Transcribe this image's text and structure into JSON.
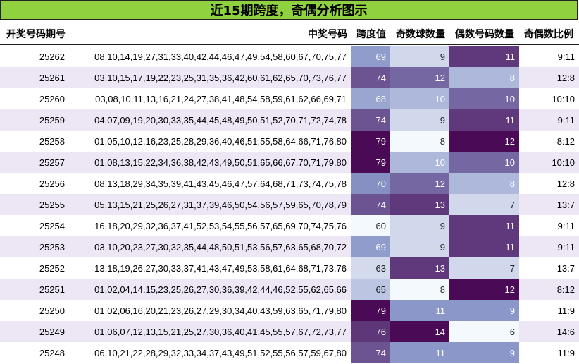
{
  "title": "近15期跨度，奇偶分析图示",
  "headers": {
    "period": "开奖号码期号",
    "numbers": "中奖号码",
    "span": "跨度值",
    "odd": "奇数球数量",
    "even": "偶数号码数量",
    "ratio": "奇偶数比例"
  },
  "chart_data": {
    "type": "table",
    "columns": [
      "开奖号码期号",
      "中奖号码",
      "跨度值",
      "奇数球数量",
      "偶数号码数量",
      "奇偶数比例"
    ],
    "rows": [
      {
        "period": "25262",
        "numbers": "08,10,14,19,27,31,33,40,42,44,46,47,49,54,58,60,67,70,75,77",
        "span": 69,
        "odd": 9,
        "even": 11,
        "ratio": "9:11"
      },
      {
        "period": "25261",
        "numbers": "03,10,15,17,19,22,23,25,31,35,36,42,60,61,62,65,70,73,76,77",
        "span": 74,
        "odd": 12,
        "even": 8,
        "ratio": "12:8"
      },
      {
        "period": "25260",
        "numbers": "03,08,10,11,13,16,21,24,27,38,41,48,54,58,59,61,62,66,69,71",
        "span": 68,
        "odd": 10,
        "even": 10,
        "ratio": "10:10"
      },
      {
        "period": "25259",
        "numbers": "04,07,09,19,20,30,33,35,44,45,48,49,50,51,52,70,71,72,74,78",
        "span": 74,
        "odd": 9,
        "even": 11,
        "ratio": "9:11"
      },
      {
        "period": "25258",
        "numbers": "01,05,10,12,16,23,25,28,29,36,40,46,51,55,58,64,66,71,76,80",
        "span": 79,
        "odd": 8,
        "even": 12,
        "ratio": "8:12"
      },
      {
        "period": "25257",
        "numbers": "01,08,13,15,22,34,36,38,42,43,49,50,51,65,66,67,70,71,79,80",
        "span": 79,
        "odd": 10,
        "even": 10,
        "ratio": "10:10"
      },
      {
        "period": "25256",
        "numbers": "08,13,18,29,34,35,39,41,43,45,46,47,57,64,68,71,73,74,75,78",
        "span": 70,
        "odd": 12,
        "even": 8,
        "ratio": "12:8"
      },
      {
        "period": "25255",
        "numbers": "05,13,15,21,25,26,27,31,37,39,46,50,54,56,57,59,65,70,78,79",
        "span": 74,
        "odd": 13,
        "even": 7,
        "ratio": "13:7"
      },
      {
        "period": "25254",
        "numbers": "16,18,20,29,32,36,37,41,52,53,54,55,56,57,65,69,70,74,75,76",
        "span": 60,
        "odd": 9,
        "even": 11,
        "ratio": "9:11"
      },
      {
        "period": "25253",
        "numbers": "03,10,20,23,27,30,32,35,44,48,50,51,53,56,57,63,65,68,70,72",
        "span": 69,
        "odd": 9,
        "even": 11,
        "ratio": "9:11"
      },
      {
        "period": "25252",
        "numbers": "13,18,19,26,27,30,33,37,41,43,47,49,53,58,61,64,68,71,73,76",
        "span": 63,
        "odd": 13,
        "even": 7,
        "ratio": "13:7"
      },
      {
        "period": "25251",
        "numbers": "01,02,04,14,15,23,25,26,27,30,36,39,42,44,46,52,55,62,65,66",
        "span": 65,
        "odd": 8,
        "even": 12,
        "ratio": "8:12"
      },
      {
        "period": "25250",
        "numbers": "01,02,06,16,20,21,23,26,27,29,30,34,40,43,59,63,65,71,79,80",
        "span": 79,
        "odd": 11,
        "even": 9,
        "ratio": "11:9"
      },
      {
        "period": "25249",
        "numbers": "01,06,07,12,13,15,21,25,27,30,36,40,41,45,55,57,67,72,73,77",
        "span": 76,
        "odd": 14,
        "even": 6,
        "ratio": "14:6"
      },
      {
        "period": "25248",
        "numbers": "06,10,21,22,28,29,32,33,34,37,43,49,51,52,55,56,57,59,67,80",
        "span": 74,
        "odd": 11,
        "even": 9,
        "ratio": "11:9"
      }
    ]
  },
  "colors": {
    "title_bg": "#8fd13f",
    "row_alt_bg": "#ece6f5",
    "heat_low": "#f4f9fd",
    "heat_mid": "#8a97c8",
    "heat_high": "#4a0a55"
  }
}
